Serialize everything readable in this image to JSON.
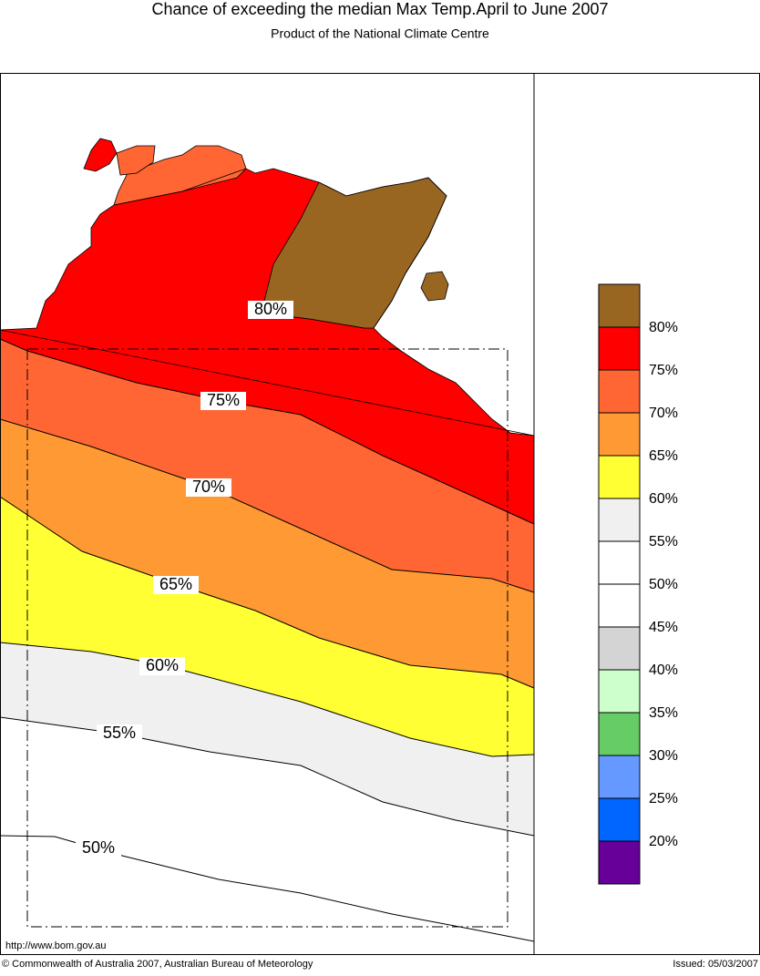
{
  "header": {
    "title": "Chance of exceeding the median Max Temp.April to June 2007",
    "subtitle": "Product of the National Climate Centre"
  },
  "map": {
    "contour_labels": [
      "80%",
      "75%",
      "70%",
      "65%",
      "60%",
      "55%",
      "50%"
    ]
  },
  "legend": {
    "labels": [
      "80%",
      "75%",
      "70%",
      "65%",
      "60%",
      "55%",
      "50%",
      "45%",
      "40%",
      "35%",
      "30%",
      "25%",
      "20%"
    ]
  },
  "footer": {
    "url": "http://www.bom.gov.au",
    "copyright": "© Commonwealth of Australia 2007, Australian Bureau of Meteorology",
    "issued": "Issued: 05/03/2007"
  }
}
